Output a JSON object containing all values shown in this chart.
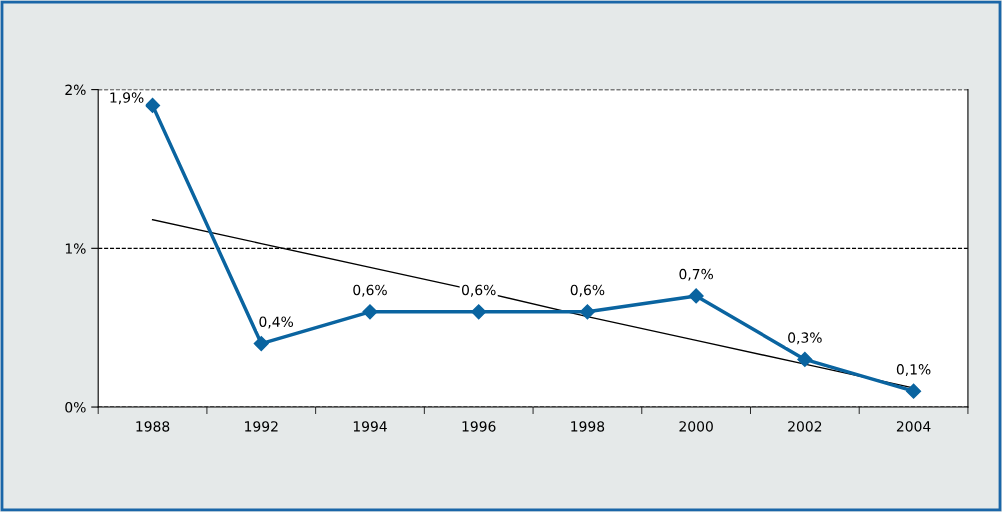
{
  "chart_data": {
    "type": "line",
    "categories": [
      "1988",
      "1992",
      "1994",
      "1996",
      "1998",
      "2000",
      "2002",
      "2004"
    ],
    "series": [
      {
        "color": "#0a64a0",
        "values": [
          1.9,
          0.4,
          0.6,
          0.6,
          0.6,
          0.7,
          0.3,
          0.1
        ],
        "value_labels": [
          "1,9%",
          "0,4%",
          "0,6%",
          "0,6%",
          "0,6%",
          "0,7%",
          "0,3%",
          "0,1%"
        ],
        "marker": "diamond"
      },
      {
        "color": "#000000",
        "values": [
          1.18,
          1.03,
          0.88,
          0.73,
          0.57,
          0.42,
          0.27,
          0.12
        ],
        "marker": "none"
      }
    ],
    "ylim": [
      0,
      2
    ],
    "yticks": [
      {
        "value": 0,
        "label": "0%"
      },
      {
        "value": 1,
        "label": "1%"
      },
      {
        "value": 2,
        "label": "2%"
      }
    ],
    "grid": "y",
    "line_style": "solid"
  }
}
